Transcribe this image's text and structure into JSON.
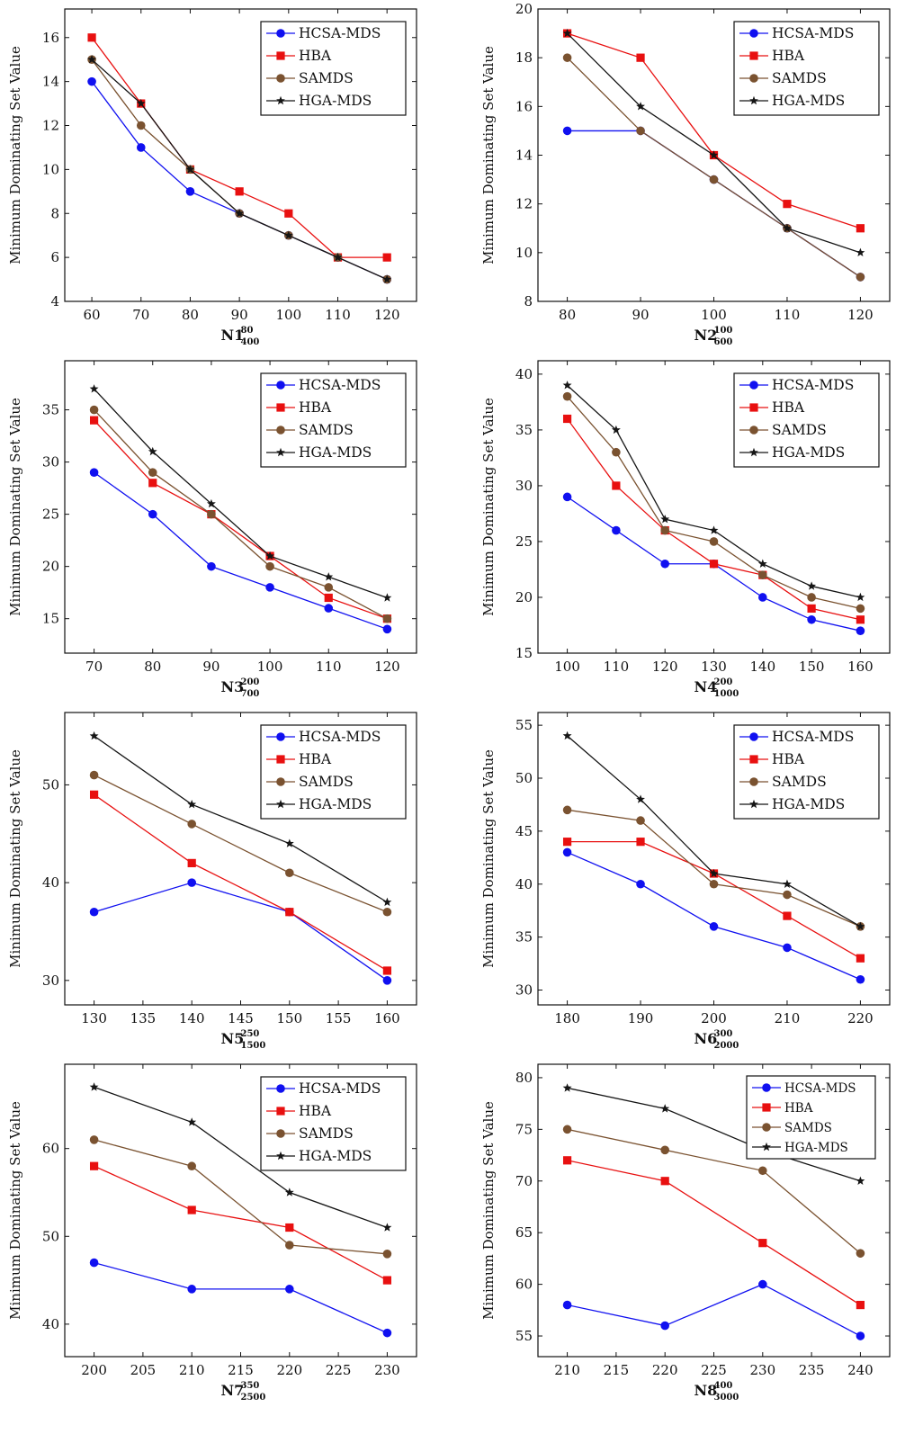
{
  "colors": {
    "HCSA-MDS": "#1010f0",
    "HBA": "#e81010",
    "SAMDS": "#7a5230",
    "HGA-MDS": "#151515"
  },
  "markers": {
    "HCSA-MDS": "circle",
    "HBA": "square",
    "SAMDS": "circle",
    "HGA-MDS": "star"
  },
  "chart_data": [
    {
      "type": "line",
      "xlabel": "N1",
      "xlabel_sup": "80",
      "xlabel_sub": "400",
      "ylabel": "Minimum Dominating Set Value",
      "x": [
        60,
        70,
        80,
        90,
        100,
        110,
        120
      ],
      "xticks": [
        60,
        70,
        80,
        90,
        100,
        110,
        120
      ],
      "xlim": [
        54.5,
        126
      ],
      "yticks": [
        4,
        6,
        8,
        10,
        12,
        14,
        16
      ],
      "ylim": [
        4,
        17.3
      ],
      "legend": "top-right",
      "series": [
        {
          "name": "HCSA-MDS",
          "values": [
            14,
            11,
            9,
            8,
            7,
            6,
            5
          ]
        },
        {
          "name": "HBA",
          "values": [
            16,
            13,
            10,
            9,
            8,
            6,
            6
          ]
        },
        {
          "name": "SAMDS",
          "values": [
            15,
            12,
            10,
            8,
            7,
            6,
            5
          ]
        },
        {
          "name": "HGA-MDS",
          "values": [
            15,
            13,
            10,
            8,
            7,
            6,
            5
          ]
        }
      ]
    },
    {
      "type": "line",
      "xlabel": "N2",
      "xlabel_sup": "100",
      "xlabel_sub": "600",
      "ylabel": "Minimum Dominating Set Value",
      "x": [
        80,
        90,
        100,
        110,
        120
      ],
      "xticks": [
        80,
        90,
        100,
        110,
        120
      ],
      "xlim": [
        76,
        124
      ],
      "yticks": [
        8,
        10,
        12,
        14,
        16,
        18,
        20
      ],
      "ylim": [
        8,
        20
      ],
      "legend": "top-right",
      "series": [
        {
          "name": "HCSA-MDS",
          "values": [
            15,
            15,
            13,
            11,
            9
          ]
        },
        {
          "name": "HBA",
          "values": [
            19,
            18,
            14,
            12,
            11
          ]
        },
        {
          "name": "SAMDS",
          "values": [
            18,
            15,
            13,
            11,
            9
          ]
        },
        {
          "name": "HGA-MDS",
          "values": [
            19,
            16,
            14,
            11,
            10
          ]
        }
      ]
    },
    {
      "type": "line",
      "xlabel": "N3",
      "xlabel_sup": "200",
      "xlabel_sub": "700",
      "ylabel": "Minimum Dominating Set Value",
      "x": [
        70,
        80,
        90,
        100,
        110,
        120
      ],
      "xticks": [
        70,
        80,
        90,
        100,
        110,
        120
      ],
      "xlim": [
        65,
        125
      ],
      "yticks": [
        15,
        20,
        25,
        30,
        35
      ],
      "ylim": [
        11.7,
        39.7
      ],
      "legend": "top-right",
      "series": [
        {
          "name": "HCSA-MDS",
          "values": [
            29,
            25,
            20,
            18,
            16,
            14
          ]
        },
        {
          "name": "HBA",
          "values": [
            34,
            28,
            25,
            21,
            17,
            15
          ]
        },
        {
          "name": "SAMDS",
          "values": [
            35,
            29,
            25,
            20,
            18,
            15
          ]
        },
        {
          "name": "HGA-MDS",
          "values": [
            37,
            31,
            26,
            21,
            19,
            17
          ]
        }
      ]
    },
    {
      "type": "line",
      "xlabel": "N4",
      "xlabel_sup": "200",
      "xlabel_sub": "1000",
      "ylabel": "Minimum Dominating Set Value",
      "x": [
        100,
        110,
        120,
        130,
        140,
        150,
        160
      ],
      "xticks": [
        100,
        110,
        120,
        130,
        140,
        150,
        160
      ],
      "xlim": [
        94,
        166
      ],
      "yticks": [
        15,
        20,
        25,
        30,
        35,
        40
      ],
      "ylim": [
        15,
        41.2
      ],
      "legend": "top-right",
      "series": [
        {
          "name": "HCSA-MDS",
          "values": [
            29,
            26,
            23,
            23,
            20,
            18,
            17
          ]
        },
        {
          "name": "HBA",
          "values": [
            36,
            30,
            26,
            23,
            22,
            19,
            18
          ]
        },
        {
          "name": "SAMDS",
          "values": [
            38,
            33,
            26,
            25,
            22,
            20,
            19
          ]
        },
        {
          "name": "HGA-MDS",
          "values": [
            39,
            35,
            27,
            26,
            23,
            21,
            20
          ]
        }
      ]
    },
    {
      "type": "line",
      "xlabel": "N5",
      "xlabel_sup": "250",
      "xlabel_sub": "1500",
      "ylabel": "Minimum Dominating Set Value",
      "x": [
        130,
        140,
        150,
        160
      ],
      "xticks": [
        130,
        135,
        140,
        145,
        150,
        155,
        160
      ],
      "xlim": [
        127,
        163
      ],
      "yticks": [
        30,
        40,
        50
      ],
      "ylim": [
        27.5,
        57.4
      ],
      "legend": "top-right",
      "series": [
        {
          "name": "HCSA-MDS",
          "values": [
            37,
            40,
            37,
            30
          ]
        },
        {
          "name": "HBA",
          "values": [
            49,
            42,
            37,
            31
          ]
        },
        {
          "name": "SAMDS",
          "values": [
            51,
            46,
            41,
            37
          ]
        },
        {
          "name": "HGA-MDS",
          "values": [
            55,
            48,
            44,
            38
          ]
        }
      ]
    },
    {
      "type": "line",
      "xlabel": "N6",
      "xlabel_sup": "300",
      "xlabel_sub": "2000",
      "ylabel": "Minimum Dominating Set Value",
      "x": [
        180,
        190,
        200,
        210,
        220
      ],
      "xticks": [
        180,
        190,
        200,
        210,
        220
      ],
      "xlim": [
        176,
        224
      ],
      "yticks": [
        30,
        35,
        40,
        45,
        50,
        55
      ],
      "ylim": [
        28.6,
        56.2
      ],
      "legend": "top-right",
      "series": [
        {
          "name": "HCSA-MDS",
          "values": [
            43,
            40,
            36,
            34,
            31
          ]
        },
        {
          "name": "HBA",
          "values": [
            44,
            44,
            41,
            37,
            33
          ]
        },
        {
          "name": "SAMDS",
          "values": [
            47,
            46,
            40,
            39,
            36
          ]
        },
        {
          "name": "HGA-MDS",
          "values": [
            54,
            48,
            41,
            40,
            36
          ]
        }
      ]
    },
    {
      "type": "line",
      "xlabel": "N7",
      "xlabel_sup": "350",
      "xlabel_sub": "2500",
      "ylabel": "Minimum Dominating Set Value",
      "x": [
        200,
        210,
        220,
        230
      ],
      "xticks": [
        200,
        205,
        210,
        215,
        220,
        225,
        230
      ],
      "xlim": [
        197,
        233
      ],
      "yticks": [
        40,
        50,
        60
      ],
      "ylim": [
        36.3,
        69.6
      ],
      "legend": "top-right",
      "series": [
        {
          "name": "HCSA-MDS",
          "values": [
            47,
            44,
            44,
            39
          ]
        },
        {
          "name": "HBA",
          "values": [
            58,
            53,
            51,
            45
          ]
        },
        {
          "name": "SAMDS",
          "values": [
            61,
            58,
            49,
            48
          ]
        },
        {
          "name": "HGA-MDS",
          "values": [
            67,
            63,
            55,
            51
          ]
        }
      ]
    },
    {
      "type": "line",
      "xlabel": "N8",
      "xlabel_sup": "400",
      "xlabel_sub": "3000",
      "ylabel": "Minimum Dominating Set Value",
      "x": [
        210,
        220,
        230,
        240
      ],
      "xticks": [
        210,
        215,
        220,
        225,
        230,
        235,
        240
      ],
      "xlim": [
        207,
        243
      ],
      "yticks": [
        55,
        60,
        65,
        70,
        75,
        80
      ],
      "ylim": [
        53,
        81.3
      ],
      "legend": "top-right",
      "series": [
        {
          "name": "HCSA-MDS",
          "values": [
            58,
            56,
            60,
            55
          ]
        },
        {
          "name": "HBA",
          "values": [
            72,
            70,
            64,
            58
          ]
        },
        {
          "name": "SAMDS",
          "values": [
            75,
            73,
            71,
            63
          ]
        },
        {
          "name": "HGA-MDS",
          "values": [
            79,
            77,
            73,
            70
          ]
        }
      ]
    }
  ]
}
